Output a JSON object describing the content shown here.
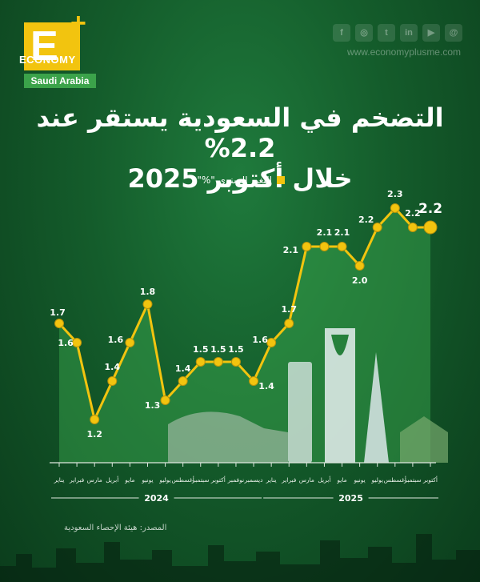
{
  "brand": {
    "logo_letter": "E",
    "logo_plus": "+",
    "logo_word": "ECONOMY",
    "logo_country": "Saudi Arabia",
    "website": "www.economyplusme.com",
    "social_icons": [
      "facebook-icon",
      "instagram-icon",
      "twitter-icon",
      "linkedin-icon",
      "youtube-icon",
      "threads-icon"
    ],
    "colors": {
      "accent": "#f2c40f",
      "background": "#145c2b",
      "brand_green": "#3ba34a"
    }
  },
  "title": {
    "line1": "التضخم في السعودية يستقر عند 2.2%",
    "line2": "خلال أكتوبر 2025"
  },
  "source": "المصدر: هيئة الإحصاء السعودية",
  "chart_data": {
    "type": "line",
    "legend": "التغير السنوي \"%\"",
    "categories": [
      "يناير",
      "فبراير",
      "مارس",
      "أبريل",
      "مايو",
      "يونيو",
      "يوليو",
      "أغسطس",
      "سبتمبر",
      "أكتوبر",
      "نوفمبر",
      "ديسمبر",
      "يناير",
      "فبراير",
      "مارس",
      "أبريل",
      "مايو",
      "يونيو",
      "يوليو",
      "أغسطس",
      "سبتمبر",
      "أكتوبر"
    ],
    "year_groups": [
      {
        "label": "2024",
        "start": 0,
        "end": 11
      },
      {
        "label": "2025",
        "start": 12,
        "end": 21
      }
    ],
    "series": [
      {
        "name": "التغير السنوي \"%\"",
        "values": [
          1.7,
          1.6,
          1.2,
          1.4,
          1.6,
          1.8,
          1.3,
          1.4,
          1.5,
          1.5,
          1.5,
          1.4,
          1.6,
          1.7,
          2.1,
          2.1,
          2.1,
          2.0,
          2.2,
          2.3,
          2.2,
          2.2
        ]
      }
    ],
    "highlight_last": "2.2"
  }
}
